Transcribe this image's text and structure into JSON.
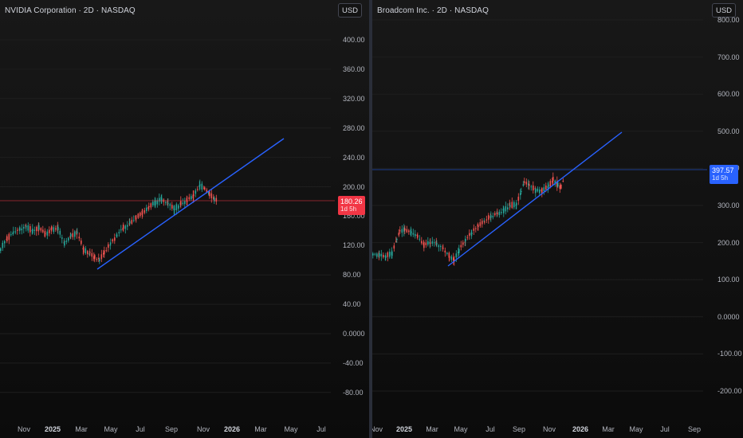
{
  "left": {
    "title": "NVIDIA Corporation · 2D · NASDAQ",
    "currency": "USD",
    "y_ticks": [
      "400.00",
      "360.00",
      "320.00",
      "280.00",
      "240.00",
      "200.00",
      "160.00",
      "120.00",
      "80.00",
      "40.00",
      "0.0000",
      "-40.00",
      "-80.00"
    ],
    "x_ticks": [
      {
        "label": "Nov",
        "bold": false
      },
      {
        "label": "2025",
        "bold": true
      },
      {
        "label": "Mar",
        "bold": false
      },
      {
        "label": "May",
        "bold": false
      },
      {
        "label": "Jul",
        "bold": false
      },
      {
        "label": "Sep",
        "bold": false
      },
      {
        "label": "Nov",
        "bold": false
      },
      {
        "label": "2026",
        "bold": true
      },
      {
        "label": "Mar",
        "bold": false
      },
      {
        "label": "May",
        "bold": false
      },
      {
        "label": "Jul",
        "bold": false
      }
    ],
    "last_price": "180.26",
    "countdown": "1d 5h",
    "badge_color": "#f23645",
    "line_color": "#2962ff"
  },
  "right": {
    "title": "Broadcom Inc. · 2D · NASDAQ",
    "currency": "USD",
    "y_ticks": [
      "800.00",
      "700.00",
      "600.00",
      "500.00",
      "400.00",
      "300.00",
      "200.00",
      "100.00",
      "0.0000",
      "-100.00",
      "-200.00"
    ],
    "x_ticks": [
      {
        "label": "Nov",
        "bold": false
      },
      {
        "label": "2025",
        "bold": true
      },
      {
        "label": "Mar",
        "bold": false
      },
      {
        "label": "May",
        "bold": false
      },
      {
        "label": "Jul",
        "bold": false
      },
      {
        "label": "Sep",
        "bold": false
      },
      {
        "label": "Nov",
        "bold": false
      },
      {
        "label": "2026",
        "bold": true
      },
      {
        "label": "Mar",
        "bold": false
      },
      {
        "label": "May",
        "bold": false
      },
      {
        "label": "Jul",
        "bold": false
      },
      {
        "label": "Sep",
        "bold": false
      }
    ],
    "last_price": "397.57",
    "countdown": "1d 5h",
    "badge_color": "#2962ff",
    "line_color": "#2962ff"
  },
  "colors": {
    "up": "#26a69a",
    "down": "#ef5350"
  }
}
